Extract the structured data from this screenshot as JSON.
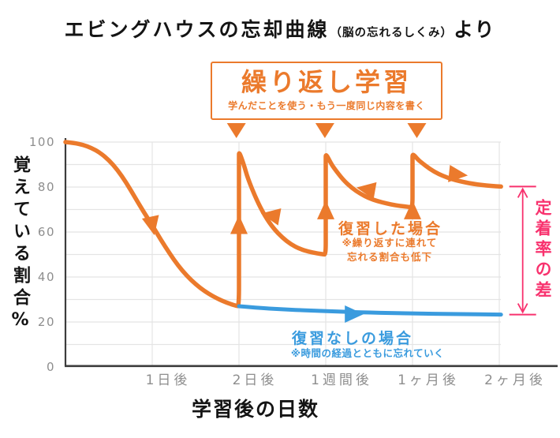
{
  "title": {
    "main": "エビングハウスの忘却曲線",
    "paren": "（脳の忘れるしくみ）",
    "suffix": "より"
  },
  "repeat_box": {
    "title": "繰り返し学習",
    "subtitle": "学んだことを使う・もう一度同じ内容を書く"
  },
  "colors": {
    "orange": "#EB7A2C",
    "blue": "#3A9BDE",
    "pink": "#F8326E",
    "grid": "#E4E4E4",
    "axis": "#3C3C3C",
    "tick_label": "#8E8E8E",
    "title_text": "#141414"
  },
  "chart_data": {
    "type": "line",
    "title": "エビングハウスの忘却曲線（脳の忘れるしくみ）より",
    "xlabel": "学習後の日数",
    "ylabel": "覚えている割合%",
    "ylim": [
      0,
      100
    ],
    "grid_step": 10,
    "y_ticks": [
      0,
      20,
      40,
      60,
      80,
      100
    ],
    "x_ticks": [
      {
        "label": "1日後",
        "t": 1
      },
      {
        "label": "2日後",
        "t": 2
      },
      {
        "label": "1週間後",
        "t": 3
      },
      {
        "label": "1ヶ月後",
        "t": 4
      },
      {
        "label": "2ヶ月後",
        "t": 5
      }
    ],
    "series": [
      {
        "name": "復習した場合",
        "color_key": "orange",
        "width": 5.5,
        "points": [
          [
            0,
            100
          ],
          [
            0.1,
            99.6
          ],
          [
            0.2,
            98.8
          ],
          [
            0.3,
            97.4
          ],
          [
            0.4,
            95.2
          ],
          [
            0.5,
            92
          ],
          [
            0.6,
            87.6
          ],
          [
            0.7,
            82
          ],
          [
            0.8,
            75.5
          ],
          [
            0.9,
            69
          ],
          [
            1,
            63
          ],
          [
            1.1,
            56.5
          ],
          [
            1.2,
            50.5
          ],
          [
            1.3,
            45
          ],
          [
            1.4,
            40.5
          ],
          [
            1.5,
            36.8
          ],
          [
            1.6,
            33.8
          ],
          [
            1.7,
            31.4
          ],
          [
            1.8,
            29.5
          ],
          [
            1.9,
            28
          ],
          [
            1.97,
            27.2
          ],
          [
            2,
            27
          ],
          [
            2,
            45
          ],
          [
            2,
            80
          ],
          [
            2,
            93
          ],
          [
            2,
            96
          ],
          [
            2.06,
            89.5
          ],
          [
            2.1,
            84
          ],
          [
            2.2,
            74.5
          ],
          [
            2.3,
            67
          ],
          [
            2.4,
            61.5
          ],
          [
            2.5,
            57.5
          ],
          [
            2.6,
            54.5
          ],
          [
            2.7,
            52.5
          ],
          [
            2.8,
            51.3
          ],
          [
            2.9,
            50.5
          ],
          [
            2.97,
            50.1
          ],
          [
            3,
            50
          ],
          [
            3,
            60
          ],
          [
            3,
            85
          ],
          [
            3,
            92
          ],
          [
            3,
            95
          ],
          [
            3.06,
            90.5
          ],
          [
            3.1,
            88.2
          ],
          [
            3.2,
            83.2
          ],
          [
            3.3,
            79.6
          ],
          [
            3.4,
            77
          ],
          [
            3.5,
            75
          ],
          [
            3.6,
            73.7
          ],
          [
            3.7,
            72.7
          ],
          [
            3.8,
            71.9
          ],
          [
            3.9,
            71.4
          ],
          [
            3.97,
            71.1
          ],
          [
            4,
            71
          ],
          [
            4,
            80
          ],
          [
            4,
            88
          ],
          [
            4,
            92
          ],
          [
            4,
            95
          ],
          [
            4.06,
            92.3
          ],
          [
            4.1,
            91
          ],
          [
            4.2,
            88
          ],
          [
            4.3,
            85.8
          ],
          [
            4.4,
            84.2
          ],
          [
            4.5,
            83
          ],
          [
            4.6,
            82.1
          ],
          [
            4.7,
            81.4
          ],
          [
            4.8,
            80.9
          ],
          [
            4.9,
            80.5
          ],
          [
            5.02,
            80.2
          ]
        ]
      },
      {
        "name": "復習なしの場合",
        "color_key": "blue",
        "width": 5,
        "points": [
          [
            2,
            27
          ],
          [
            2.2,
            26.3
          ],
          [
            2.5,
            25.6
          ],
          [
            2.8,
            25.1
          ],
          [
            3.1,
            24.7
          ],
          [
            3.5,
            24.2
          ],
          [
            4,
            23.8
          ],
          [
            4.5,
            23.5
          ],
          [
            5.02,
            23.3
          ]
        ]
      }
    ],
    "markers": [
      {
        "series": "orange",
        "t": 1.0,
        "v": 63,
        "rot": 78
      },
      {
        "series": "orange",
        "t": 2.0,
        "v": 63,
        "rot": 270
      },
      {
        "series": "orange",
        "t": 2.37,
        "v": 67.4,
        "rot": 190
      },
      {
        "series": "orange",
        "t": 3.0,
        "v": 69.5,
        "rot": 270
      },
      {
        "series": "orange",
        "t": 3.47,
        "v": 79,
        "rot": 190
      },
      {
        "series": "orange",
        "t": 4.0,
        "v": 69.5,
        "rot": 270
      },
      {
        "series": "orange",
        "t": 4.52,
        "v": 85.6,
        "rot": 6
      },
      {
        "series": "blue",
        "t": 3.32,
        "v": 23.5,
        "rot": 0
      }
    ],
    "review_arrows_t": [
      1.97,
      2.99,
      4.05
    ],
    "gap": {
      "t": 5.27,
      "v_top": 80.2,
      "v_bottom": 23.3
    },
    "annotations": {
      "reviewed_label": "復習した場合",
      "reviewed_note1": "※繰り返すに連れて",
      "reviewed_note2": "忘れる割合も低下",
      "no_review_label": "復習なしの場合",
      "no_review_note": "※時間の経過とともに忘れていく",
      "gap_label": "定着率の差"
    }
  }
}
